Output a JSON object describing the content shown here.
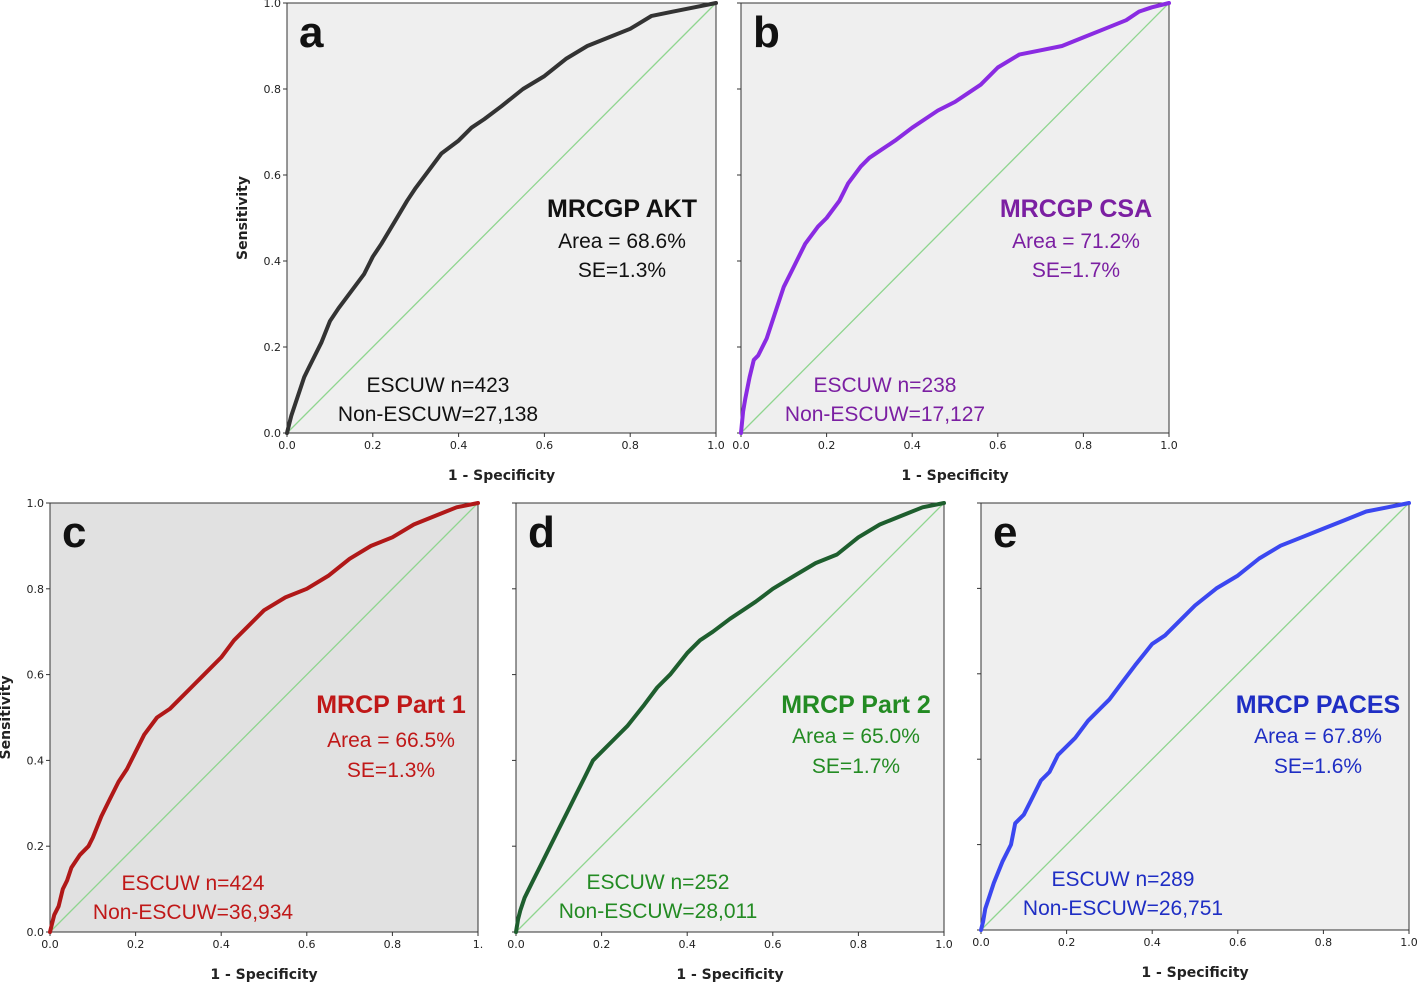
{
  "chart_data": [
    {
      "panel": "a",
      "type": "line",
      "xlabel": "1 - Specificity",
      "ylabel": "Sensitivity",
      "xlim": [
        0,
        1
      ],
      "ylim": [
        0,
        1
      ],
      "xticks": [
        "0.0",
        "0.2",
        "0.4",
        "0.6",
        "0.8",
        "1.0"
      ],
      "yticks": [
        "0.0",
        "0.2",
        "0.4",
        "0.6",
        "0.8",
        "1.0"
      ],
      "colors": {
        "curve": "#333333",
        "diagonal": "#8fd58f",
        "background": "#efefef",
        "text": "#111111"
      },
      "annotation": {
        "title": "MRCGP AKT",
        "area": "Area = 68.6%",
        "se": "SE=1.3%"
      },
      "counts": {
        "escuw": "ESCUW n=423",
        "non_escuw": "Non-ESCUW=27,138"
      },
      "series": [
        {
          "x": [
            0,
            0.005,
            0.01,
            0.02,
            0.03,
            0.04,
            0.05,
            0.06,
            0.08,
            0.1,
            0.12,
            0.15,
            0.18,
            0.2,
            0.22,
            0.25,
            0.28,
            0.3,
            0.33,
            0.36,
            0.4,
            0.43,
            0.46,
            0.5,
            0.55,
            0.6,
            0.65,
            0.7,
            0.75,
            0.8,
            0.85,
            0.9,
            0.95,
            1.0
          ],
          "y": [
            0,
            0.02,
            0.04,
            0.07,
            0.1,
            0.13,
            0.15,
            0.17,
            0.21,
            0.26,
            0.29,
            0.33,
            0.37,
            0.41,
            0.44,
            0.49,
            0.54,
            0.57,
            0.61,
            0.65,
            0.68,
            0.71,
            0.73,
            0.76,
            0.8,
            0.83,
            0.87,
            0.9,
            0.92,
            0.94,
            0.97,
            0.98,
            0.99,
            1.0
          ]
        }
      ]
    },
    {
      "panel": "b",
      "type": "line",
      "xlabel": "1 - Specificity",
      "ylabel": "",
      "xlim": [
        0,
        1
      ],
      "ylim": [
        0,
        1
      ],
      "xticks": [
        "0.0",
        "0.2",
        "0.4",
        "0.6",
        "0.8",
        "1.0"
      ],
      "yticks": [
        "",
        "",
        "",
        "",
        "",
        ""
      ],
      "colors": {
        "curve": "#8a2be2",
        "diagonal": "#8fd58f",
        "background": "#efefef",
        "text": "#7b1fa2"
      },
      "annotation": {
        "title": "MRCGP CSA",
        "area": "Area = 71.2%",
        "se": "SE=1.7%"
      },
      "counts": {
        "escuw": "ESCUW n=238",
        "non_escuw": "Non-ESCUW=17,127"
      },
      "series": [
        {
          "x": [
            0,
            0.005,
            0.01,
            0.02,
            0.03,
            0.04,
            0.06,
            0.08,
            0.1,
            0.12,
            0.15,
            0.18,
            0.2,
            0.23,
            0.25,
            0.28,
            0.3,
            0.33,
            0.36,
            0.4,
            0.43,
            0.46,
            0.5,
            0.53,
            0.56,
            0.6,
            0.65,
            0.7,
            0.75,
            0.8,
            0.85,
            0.9,
            0.93,
            0.96,
            1.0
          ],
          "y": [
            0,
            0.05,
            0.08,
            0.13,
            0.17,
            0.18,
            0.22,
            0.28,
            0.34,
            0.38,
            0.44,
            0.48,
            0.5,
            0.54,
            0.58,
            0.62,
            0.64,
            0.66,
            0.68,
            0.71,
            0.73,
            0.75,
            0.77,
            0.79,
            0.81,
            0.85,
            0.88,
            0.89,
            0.9,
            0.92,
            0.94,
            0.96,
            0.98,
            0.99,
            1.0
          ]
        }
      ]
    },
    {
      "panel": "c",
      "type": "line",
      "xlabel": "1 - Specificity",
      "ylabel": "Sensitivity",
      "xlim": [
        0,
        1
      ],
      "ylim": [
        0,
        1
      ],
      "xticks": [
        "0.0",
        "0.2",
        "0.4",
        "0.6",
        "0.8",
        "1."
      ],
      "yticks": [
        "0.0",
        "0.2",
        "0.4",
        "0.6",
        "0.8",
        "1.0"
      ],
      "colors": {
        "curve": "#b01818",
        "diagonal": "#8fd58f",
        "background": "#e1e1e1",
        "text": "#c01818"
      },
      "annotation": {
        "title": "MRCP Part 1",
        "area": "Area = 66.5%",
        "se": "SE=1.3%"
      },
      "counts": {
        "escuw": "ESCUW n=424",
        "non_escuw": "Non-ESCUW=36,934"
      },
      "series": [
        {
          "x": [
            0,
            0.005,
            0.01,
            0.02,
            0.03,
            0.04,
            0.05,
            0.07,
            0.09,
            0.1,
            0.12,
            0.14,
            0.16,
            0.18,
            0.2,
            0.22,
            0.25,
            0.28,
            0.3,
            0.33,
            0.36,
            0.4,
            0.43,
            0.46,
            0.5,
            0.55,
            0.6,
            0.65,
            0.7,
            0.75,
            0.8,
            0.85,
            0.9,
            0.95,
            1.0
          ],
          "y": [
            0,
            0.02,
            0.04,
            0.06,
            0.1,
            0.12,
            0.15,
            0.18,
            0.2,
            0.22,
            0.27,
            0.31,
            0.35,
            0.38,
            0.42,
            0.46,
            0.5,
            0.52,
            0.54,
            0.57,
            0.6,
            0.64,
            0.68,
            0.71,
            0.75,
            0.78,
            0.8,
            0.83,
            0.87,
            0.9,
            0.92,
            0.95,
            0.97,
            0.99,
            1.0
          ]
        }
      ]
    },
    {
      "panel": "d",
      "type": "line",
      "xlabel": "1 - Specificity",
      "ylabel": "",
      "xlim": [
        0,
        1
      ],
      "ylim": [
        0,
        1
      ],
      "xticks": [
        "0.0",
        "0.2",
        "0.4",
        "0.6",
        "0.8",
        "1.0"
      ],
      "yticks": [
        "",
        "",
        "",
        "",
        "",
        ""
      ],
      "colors": {
        "curve": "#1e5e2e",
        "diagonal": "#8fd58f",
        "background": "#efefef",
        "text": "#238b23"
      },
      "annotation": {
        "title": "MRCP Part 2",
        "area": "Area = 65.0%",
        "se": "SE=1.7%"
      },
      "counts": {
        "escuw": "ESCUW n=252",
        "non_escuw": "Non-ESCUW=28,011"
      },
      "series": [
        {
          "x": [
            0,
            0.005,
            0.01,
            0.02,
            0.04,
            0.06,
            0.08,
            0.1,
            0.12,
            0.14,
            0.16,
            0.18,
            0.2,
            0.23,
            0.26,
            0.3,
            0.33,
            0.36,
            0.4,
            0.43,
            0.46,
            0.5,
            0.53,
            0.56,
            0.6,
            0.65,
            0.7,
            0.75,
            0.8,
            0.85,
            0.9,
            0.95,
            1.0
          ],
          "y": [
            0,
            0.03,
            0.05,
            0.08,
            0.12,
            0.16,
            0.2,
            0.24,
            0.28,
            0.32,
            0.36,
            0.4,
            0.42,
            0.45,
            0.48,
            0.53,
            0.57,
            0.6,
            0.65,
            0.68,
            0.7,
            0.73,
            0.75,
            0.77,
            0.8,
            0.83,
            0.86,
            0.88,
            0.92,
            0.95,
            0.97,
            0.99,
            1.0
          ]
        }
      ]
    },
    {
      "panel": "e",
      "type": "line",
      "xlabel": "1 - Specificity",
      "ylabel": "",
      "xlim": [
        0,
        1
      ],
      "ylim": [
        0,
        1
      ],
      "xticks": [
        "0.0",
        "0.2",
        "0.4",
        "0.6",
        "0.8",
        "1.0"
      ],
      "yticks": [
        "",
        "",
        "",
        "",
        "",
        ""
      ],
      "colors": {
        "curve": "#3b47f0",
        "diagonal": "#8fd58f",
        "background": "#efefef",
        "text": "#1f2ec4"
      },
      "annotation": {
        "title": "MRCP PACES",
        "area": "Area = 67.8%",
        "se": "SE=1.6%"
      },
      "counts": {
        "escuw": "ESCUW n=289",
        "non_escuw": "Non-ESCUW=26,751"
      },
      "series": [
        {
          "x": [
            0,
            0.005,
            0.01,
            0.02,
            0.03,
            0.05,
            0.07,
            0.08,
            0.1,
            0.12,
            0.14,
            0.16,
            0.18,
            0.2,
            0.22,
            0.25,
            0.28,
            0.3,
            0.33,
            0.36,
            0.4,
            0.43,
            0.46,
            0.5,
            0.55,
            0.6,
            0.65,
            0.7,
            0.75,
            0.8,
            0.85,
            0.9,
            0.95,
            1.0
          ],
          "y": [
            0,
            0.02,
            0.05,
            0.08,
            0.11,
            0.16,
            0.2,
            0.25,
            0.27,
            0.31,
            0.35,
            0.37,
            0.41,
            0.43,
            0.45,
            0.49,
            0.52,
            0.54,
            0.58,
            0.62,
            0.67,
            0.69,
            0.72,
            0.76,
            0.8,
            0.83,
            0.87,
            0.9,
            0.92,
            0.94,
            0.96,
            0.98,
            0.99,
            1.0
          ]
        }
      ]
    }
  ]
}
